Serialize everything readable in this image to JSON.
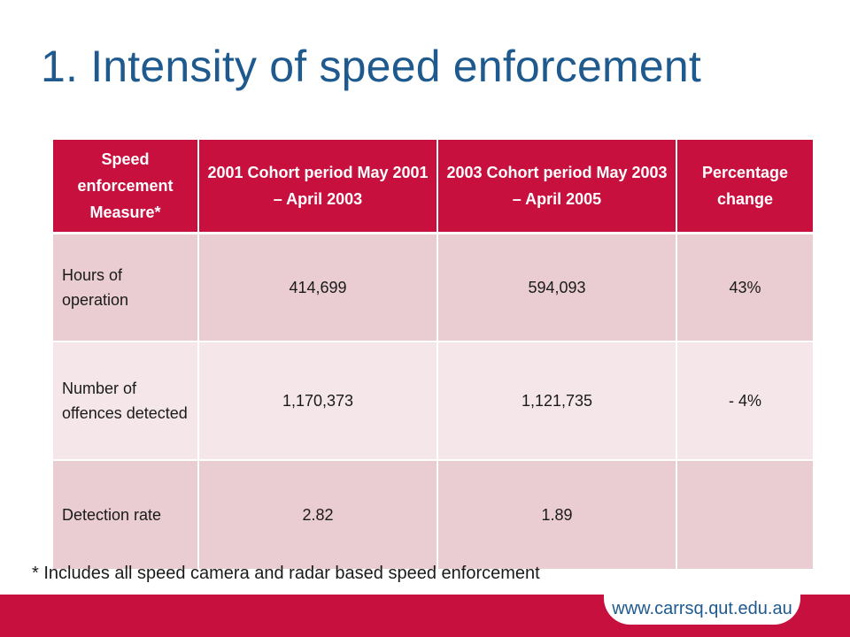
{
  "slide": {
    "title": "1. Intensity of speed enforcement",
    "footnote": "* Includes all speed camera and radar based speed enforcement",
    "footer_url": "www.carrsq.qut.edu.au"
  },
  "table": {
    "headers": [
      "Speed enforcement Measure*",
      "2001 Cohort period May 2001 – April 2003",
      "2003 Cohort period May 2003 – April 2005",
      "Percentage change"
    ],
    "rows": [
      {
        "measure": "Hours of operation",
        "cohort_2001": "414,699",
        "cohort_2003": "594,093",
        "change": "43%"
      },
      {
        "measure": "Number of offences detected",
        "cohort_2001": "1,170,373",
        "cohort_2003": "1,121,735",
        "change": "- 4%"
      },
      {
        "measure": "Detection rate",
        "cohort_2001": "2.82",
        "cohort_2003": "1.89",
        "change": ""
      }
    ]
  },
  "colors": {
    "title": "#1e5a8e",
    "header_bg": "#c8103f",
    "row_dark": "#e9cdd2",
    "row_light": "#f5e7e9",
    "footer_band": "#c8103f"
  }
}
